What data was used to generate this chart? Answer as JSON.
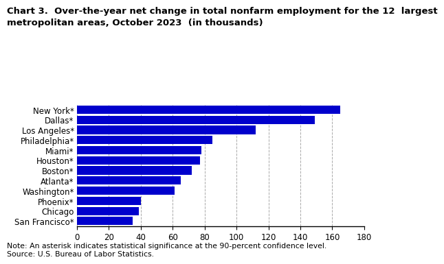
{
  "categories": [
    "New York*",
    "Dallas*",
    "Los Angeles*",
    "Philadelphia*",
    "Miami*",
    "Houston*",
    "Boston*",
    "Atlanta*",
    "Washington*",
    "Phoenix*",
    "Chicago",
    "San Francisco*"
  ],
  "values": [
    165,
    149,
    112,
    85,
    78,
    77,
    72,
    65,
    61,
    40,
    39,
    35
  ],
  "bar_color": "#0000cc",
  "title_line1": "Chart 3.  Over-the-year net change in total nonfarm employment for the 12  largest",
  "title_line2": "metropolitan areas, October 2023  (in thousands)",
  "xlim": [
    0,
    180
  ],
  "xticks": [
    0,
    20,
    40,
    60,
    80,
    100,
    120,
    140,
    160,
    180
  ],
  "note": "Note: An asterisk indicates statistical significance at the 90-percent confidence level.",
  "source": "Source: U.S. Bureau of Labor Statistics.",
  "grid_color": "#aaaaaa",
  "background_color": "#ffffff",
  "title_fontsize": 9.5,
  "label_fontsize": 8.5,
  "tick_fontsize": 8.5,
  "note_fontsize": 7.8
}
